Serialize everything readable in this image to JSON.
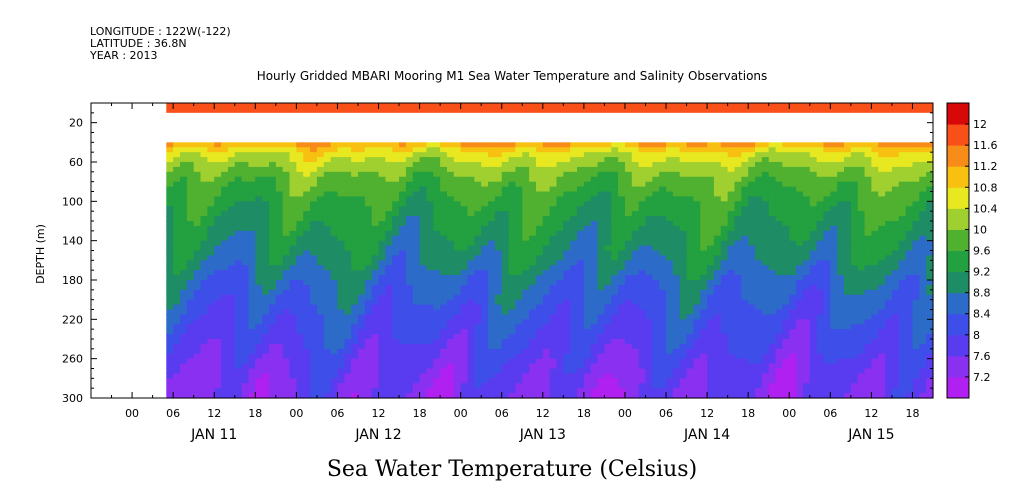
{
  "header": {
    "longitude": "LONGITUDE : 122W(-122)",
    "latitude": "LATITUDE : 36.8N",
    "year": "YEAR : 2013"
  },
  "chart_data": {
    "type": "heatmap",
    "title": "Hourly Gridded MBARI Mooring M1 Sea Water Temperature and Salinity Observations",
    "xlabel": "Sea Water Temperature (Celsius)",
    "ylabel": "DEPTH (m)",
    "x_hour_ticks": [
      "00",
      "06",
      "12",
      "18",
      "00",
      "06",
      "12",
      "18",
      "00",
      "06",
      "12",
      "18",
      "00",
      "06",
      "12",
      "18",
      "00",
      "06",
      "12",
      "18"
    ],
    "x_date_labels": [
      "JAN 11",
      "JAN 12",
      "JAN 13",
      "JAN 14",
      "JAN 15"
    ],
    "x_range_hours": [
      -6,
      117
    ],
    "data_start_hour": 5,
    "ylim": [
      300,
      0
    ],
    "y_ticks": [
      20,
      60,
      100,
      140,
      180,
      220,
      260,
      300
    ],
    "surface_band_depth": [
      0,
      10
    ],
    "missing_depth_gap": [
      10,
      40
    ],
    "colorbar": {
      "levels": [
        7.2,
        7.6,
        8,
        8.4,
        8.8,
        9.2,
        9.6,
        10,
        10.4,
        10.8,
        11.2,
        11.6,
        12
      ],
      "colors": [
        "#b020f0",
        "#8a30f0",
        "#5a3cf0",
        "#3e4ee8",
        "#2c6cc8",
        "#1e8c64",
        "#23a040",
        "#50b030",
        "#a0d030",
        "#e8e820",
        "#f8c010",
        "#f88c18",
        "#f85018",
        "#d80808"
      ]
    },
    "depth_profile": {
      "depths": [
        40,
        50,
        60,
        70,
        80,
        100,
        120,
        140,
        160,
        180,
        200,
        220,
        240,
        260,
        280,
        300
      ],
      "temps": [
        11.3,
        10.6,
        10.3,
        10.0,
        9.8,
        9.5,
        9.3,
        9.1,
        8.9,
        8.6,
        8.4,
        8.2,
        8.0,
        7.8,
        7.6,
        7.5
      ]
    },
    "surface_temp": 11.8
  }
}
